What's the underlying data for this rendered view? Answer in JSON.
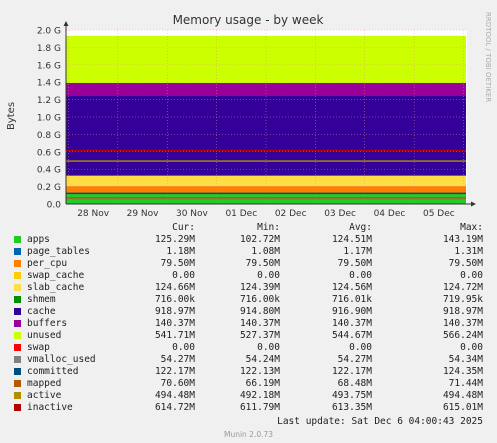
{
  "chart_data": {
    "type": "area",
    "title": "Memory usage - by week",
    "ylabel": "Bytes",
    "ylim": [
      0,
      2.0
    ],
    "yunit": "G",
    "yticks": [
      "0.0",
      "0.2 G",
      "0.4 G",
      "0.6 G",
      "0.8 G",
      "1.0 G",
      "1.2 G",
      "1.4 G",
      "1.6 G",
      "1.8 G",
      "2.0 G"
    ],
    "categories": [
      "28 Nov",
      "29 Nov",
      "30 Nov",
      "01 Dec",
      "02 Dec",
      "03 Dec",
      "04 Dec",
      "05 Dec"
    ],
    "grid": true,
    "stacked_series": [
      {
        "name": "apps",
        "color": "#22cc22",
        "value_G": 0.125
      },
      {
        "name": "page_tables",
        "color": "#0066b3",
        "value_G": 0.001
      },
      {
        "name": "per_cpu",
        "color": "#ff8000",
        "value_G": 0.08
      },
      {
        "name": "swap_cache",
        "color": "#ffcc00",
        "value_G": 0.0
      },
      {
        "name": "slab_cache",
        "color": "#ffdd44",
        "value_G": 0.125
      },
      {
        "name": "shmem",
        "color": "#008f00",
        "value_G": 0.001
      },
      {
        "name": "cache",
        "color": "#330099",
        "value_G": 0.919
      },
      {
        "name": "buffers",
        "color": "#990099",
        "value_G": 0.14
      },
      {
        "name": "unused",
        "color": "#ccff00",
        "value_G": 0.542
      },
      {
        "name": "swap",
        "color": "#ff0000",
        "value_G": 0.0
      }
    ],
    "line_series": [
      {
        "name": "vmalloc_used",
        "color": "#808080",
        "value_G": 0.054
      },
      {
        "name": "committed",
        "color": "#004d80",
        "value_G": 0.122
      },
      {
        "name": "mapped",
        "color": "#b35a00",
        "value_G": 0.071
      },
      {
        "name": "active",
        "color": "#b38f00",
        "value_G": 0.494
      },
      {
        "name": "inactive",
        "color": "#b30000",
        "value_G": 0.615
      }
    ],
    "side_label": "RRDTOOL / TOBI OETIKER"
  },
  "legend": {
    "headers": {
      "cur": "Cur:",
      "min": "Min:",
      "avg": "Avg:",
      "max": "Max:"
    },
    "rows": [
      {
        "name": "apps",
        "color": "#22cc22",
        "cur": "125.29M",
        "min": "102.72M",
        "avg": "124.51M",
        "max": "143.19M"
      },
      {
        "name": "page_tables",
        "color": "#0066b3",
        "cur": "1.18M",
        "min": "1.08M",
        "avg": "1.17M",
        "max": "1.31M"
      },
      {
        "name": "per_cpu",
        "color": "#ff8000",
        "cur": "79.50M",
        "min": "79.50M",
        "avg": "79.50M",
        "max": "79.50M"
      },
      {
        "name": "swap_cache",
        "color": "#ffcc00",
        "cur": "0.00",
        "min": "0.00",
        "avg": "0.00",
        "max": "0.00"
      },
      {
        "name": "slab_cache",
        "color": "#ffdd44",
        "cur": "124.66M",
        "min": "124.39M",
        "avg": "124.56M",
        "max": "124.72M"
      },
      {
        "name": "shmem",
        "color": "#008f00",
        "cur": "716.00k",
        "min": "716.00k",
        "avg": "716.01k",
        "max": "719.95k"
      },
      {
        "name": "cache",
        "color": "#330099",
        "cur": "918.97M",
        "min": "914.80M",
        "avg": "916.90M",
        "max": "918.97M"
      },
      {
        "name": "buffers",
        "color": "#990099",
        "cur": "140.37M",
        "min": "140.37M",
        "avg": "140.37M",
        "max": "140.37M"
      },
      {
        "name": "unused",
        "color": "#ccff00",
        "cur": "541.71M",
        "min": "527.37M",
        "avg": "544.67M",
        "max": "566.24M"
      },
      {
        "name": "swap",
        "color": "#ff0000",
        "cur": "0.00",
        "min": "0.00",
        "avg": "0.00",
        "max": "0.00"
      },
      {
        "name": "vmalloc_used",
        "color": "#808080",
        "cur": "54.27M",
        "min": "54.24M",
        "avg": "54.27M",
        "max": "54.34M"
      },
      {
        "name": "committed",
        "color": "#004d80",
        "cur": "122.17M",
        "min": "122.13M",
        "avg": "122.17M",
        "max": "124.35M"
      },
      {
        "name": "mapped",
        "color": "#b35a00",
        "cur": "70.60M",
        "min": "66.19M",
        "avg": "68.48M",
        "max": "71.44M"
      },
      {
        "name": "active",
        "color": "#b38f00",
        "cur": "494.48M",
        "min": "492.18M",
        "avg": "493.75M",
        "max": "494.48M"
      },
      {
        "name": "inactive",
        "color": "#b30000",
        "cur": "614.72M",
        "min": "611.79M",
        "avg": "613.35M",
        "max": "615.01M"
      }
    ]
  },
  "footer": {
    "last_update": "Last update: Sat Dec  6 04:00:43 2025",
    "version": "Munin 2.0.73"
  }
}
